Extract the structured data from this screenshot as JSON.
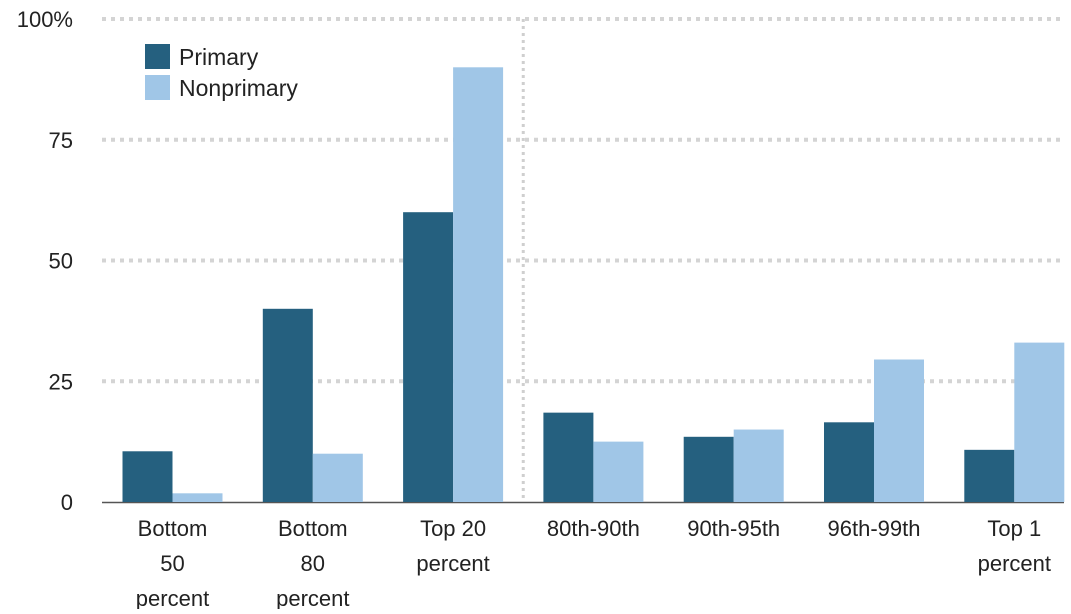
{
  "chart_data": {
    "type": "bar",
    "categories": [
      [
        "Bottom",
        "50",
        "percent"
      ],
      [
        "Bottom",
        "80",
        "percent"
      ],
      [
        "Top 20",
        "percent"
      ],
      [
        "80th-90th"
      ],
      [
        "90th-95th"
      ],
      [
        "96th-99th"
      ],
      [
        "Top 1",
        "percent"
      ]
    ],
    "series": [
      {
        "name": "Primary",
        "color": "#25607f",
        "values": [
          10.5,
          40,
          60,
          18.5,
          13.5,
          16.5,
          10.8
        ]
      },
      {
        "name": "Nonprimary",
        "color": "#a0c6e7",
        "values": [
          1.8,
          10,
          90,
          12.5,
          15,
          29.5,
          33
        ]
      }
    ],
    "yticks": [
      {
        "value": 0,
        "label": "0"
      },
      {
        "value": 25,
        "label": "25"
      },
      {
        "value": 50,
        "label": "50"
      },
      {
        "value": 75,
        "label": "75"
      },
      {
        "value": 100,
        "label": "100%"
      }
    ],
    "ylim": [
      0,
      100
    ],
    "title": "",
    "xlabel": "",
    "ylabel": "",
    "grid": "dotted horizontal",
    "group_divider_after_category": 2,
    "legend_position": "top-left"
  }
}
